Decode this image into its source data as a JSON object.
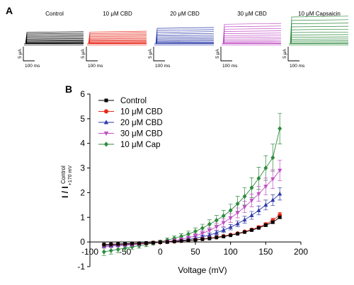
{
  "panels": {
    "a_label": "A",
    "b_label": "B"
  },
  "traces": {
    "scale_current": "5 μA",
    "scale_time": "100 ms",
    "items": [
      {
        "title": "Control",
        "color": "#000000",
        "amplitude": 1.0
      },
      {
        "title": "10 μM CBD",
        "color": "#e8291c",
        "amplitude": 1.1
      },
      {
        "title": "20 μM CBD",
        "color": "#2c3aa8",
        "amplitude": 1.95
      },
      {
        "title": "30 μM CBD",
        "color": "#c04ec4",
        "amplitude": 2.9
      },
      {
        "title": "10 μM Capsaicin",
        "color": "#2e8b3e",
        "amplitude": 4.6
      }
    ]
  },
  "chart_data": {
    "type": "scatter",
    "xlabel": "Voltage (mV)",
    "ylabel_main": "I / I",
    "ylabel_sub": "Control",
    "ylabel_subsub": "+170 mV",
    "xlim": [
      -100,
      200
    ],
    "ylim": [
      -1,
      6
    ],
    "x_ticks": [
      -100,
      -50,
      0,
      50,
      100,
      150,
      200
    ],
    "y_ticks": [
      -1,
      0,
      1,
      2,
      3,
      4,
      5,
      6
    ],
    "legend_position": "top-left",
    "x": [
      -80,
      -70,
      -60,
      -50,
      -40,
      -30,
      -20,
      -10,
      0,
      10,
      20,
      30,
      40,
      50,
      60,
      70,
      80,
      90,
      100,
      110,
      120,
      130,
      140,
      150,
      160,
      170
    ],
    "series": [
      {
        "name": "Control",
        "color": "#000000",
        "marker": "square",
        "values": [
          -0.1,
          -0.09,
          -0.08,
          -0.07,
          -0.06,
          -0.05,
          -0.04,
          -0.03,
          -0.01,
          0.0,
          0.02,
          0.04,
          0.06,
          0.08,
          0.11,
          0.14,
          0.18,
          0.22,
          0.27,
          0.33,
          0.4,
          0.48,
          0.57,
          0.68,
          0.8,
          1.0
        ],
        "errors": [
          0.02,
          0.02,
          0.02,
          0.02,
          0.02,
          0.02,
          0.02,
          0.02,
          0.02,
          0.02,
          0.02,
          0.02,
          0.02,
          0.02,
          0.02,
          0.02,
          0.02,
          0.03,
          0.03,
          0.03,
          0.03,
          0.04,
          0.04,
          0.05,
          0.05,
          0.05
        ]
      },
      {
        "name": "10 μM CBD",
        "color": "#e8291c",
        "marker": "circle",
        "values": [
          -0.11,
          -0.1,
          -0.09,
          -0.08,
          -0.07,
          -0.06,
          -0.05,
          -0.03,
          -0.01,
          0.0,
          0.02,
          0.04,
          0.06,
          0.09,
          0.12,
          0.15,
          0.19,
          0.24,
          0.29,
          0.35,
          0.42,
          0.5,
          0.6,
          0.72,
          0.88,
          1.1
        ],
        "errors": [
          0.02,
          0.02,
          0.02,
          0.02,
          0.02,
          0.02,
          0.02,
          0.02,
          0.02,
          0.02,
          0.02,
          0.02,
          0.02,
          0.02,
          0.03,
          0.03,
          0.03,
          0.03,
          0.04,
          0.04,
          0.04,
          0.05,
          0.05,
          0.06,
          0.08,
          0.1
        ]
      },
      {
        "name": "20 μM CBD",
        "color": "#2c3aa8",
        "marker": "triangle-up",
        "values": [
          -0.15,
          -0.14,
          -0.12,
          -0.11,
          -0.09,
          -0.07,
          -0.05,
          -0.03,
          -0.01,
          0.0,
          0.03,
          0.06,
          0.1,
          0.15,
          0.21,
          0.28,
          0.37,
          0.48,
          0.6,
          0.74,
          0.9,
          1.08,
          1.28,
          1.5,
          1.7,
          1.95
        ],
        "errors": [
          0.05,
          0.05,
          0.04,
          0.04,
          0.04,
          0.04,
          0.03,
          0.03,
          0.02,
          0.02,
          0.03,
          0.04,
          0.05,
          0.06,
          0.07,
          0.08,
          0.09,
          0.1,
          0.11,
          0.12,
          0.14,
          0.16,
          0.18,
          0.2,
          0.22,
          0.25
        ]
      },
      {
        "name": "30 μM CBD",
        "color": "#c04ec4",
        "marker": "triangle-down",
        "values": [
          -0.18,
          -0.17,
          -0.15,
          -0.13,
          -0.11,
          -0.09,
          -0.06,
          -0.04,
          -0.01,
          0.02,
          0.06,
          0.11,
          0.17,
          0.25,
          0.35,
          0.47,
          0.61,
          0.78,
          0.97,
          1.18,
          1.42,
          1.68,
          1.95,
          2.25,
          2.55,
          2.9
        ],
        "errors": [
          0.06,
          0.06,
          0.05,
          0.05,
          0.05,
          0.04,
          0.04,
          0.03,
          0.03,
          0.03,
          0.04,
          0.05,
          0.06,
          0.08,
          0.1,
          0.12,
          0.14,
          0.16,
          0.18,
          0.2,
          0.23,
          0.26,
          0.3,
          0.34,
          0.38,
          0.42
        ]
      },
      {
        "name": "10 μM Cap",
        "color": "#2e8b3e",
        "marker": "diamond",
        "values": [
          -0.4,
          -0.35,
          -0.3,
          -0.25,
          -0.2,
          -0.15,
          -0.1,
          -0.05,
          0.0,
          0.08,
          0.15,
          0.23,
          0.32,
          0.43,
          0.56,
          0.72,
          0.88,
          1.06,
          1.28,
          1.55,
          1.85,
          2.2,
          2.58,
          3.0,
          3.42,
          4.6
        ],
        "errors": [
          0.15,
          0.14,
          0.13,
          0.12,
          0.11,
          0.1,
          0.09,
          0.08,
          0.07,
          0.08,
          0.09,
          0.1,
          0.12,
          0.14,
          0.16,
          0.18,
          0.2,
          0.22,
          0.25,
          0.3,
          0.35,
          0.4,
          0.45,
          0.5,
          0.55,
          0.62
        ]
      }
    ]
  }
}
